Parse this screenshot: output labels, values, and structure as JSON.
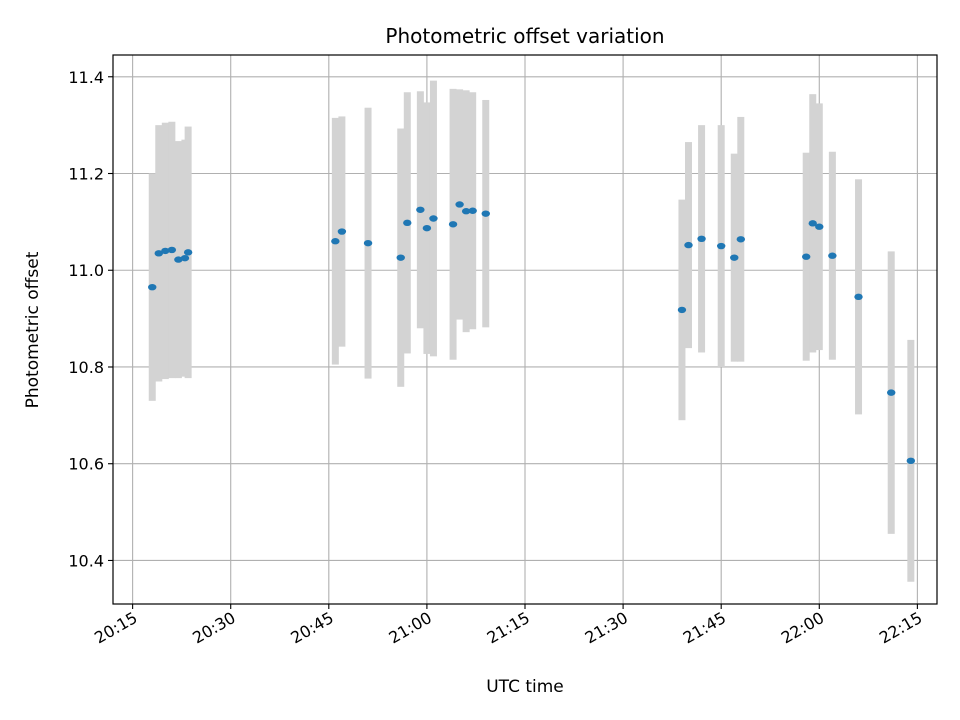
{
  "chart_data": {
    "type": "scatter",
    "title": "Photometric offset variation",
    "xlabel": "UTC time",
    "ylabel": "Photometric offset",
    "xlim": [
      "20:12",
      "22:18"
    ],
    "ylim": [
      10.31,
      11.445
    ],
    "grid": true,
    "x_ticks": [
      "20:15",
      "20:30",
      "20:45",
      "21:00",
      "21:15",
      "21:30",
      "21:45",
      "22:00",
      "22:15"
    ],
    "y_ticks": [
      "10.4",
      "10.6",
      "10.8",
      "11.0",
      "11.2",
      "11.4"
    ],
    "colors": {
      "points": "#1f77b4",
      "errorbars": "#d3d3d3",
      "grid": "#b0b0b0"
    },
    "series": [
      {
        "points": [
          {
            "x": "20:18",
            "y": 10.965,
            "err": 0.235
          },
          {
            "x": "20:19",
            "y": 11.035,
            "err": 0.265
          },
          {
            "x": "20:20",
            "y": 11.04,
            "err": 0.265
          },
          {
            "x": "20:21",
            "y": 11.042,
            "err": 0.265
          },
          {
            "x": "20:22",
            "y": 11.022,
            "err": 0.245
          },
          {
            "x": "20:23",
            "y": 11.025,
            "err": 0.245
          },
          {
            "x": "20:23",
            "y": 11.037,
            "err": 0.26
          },
          {
            "x": "20:46",
            "y": 11.06,
            "err": 0.255
          },
          {
            "x": "20:47",
            "y": 11.08,
            "err": 0.238
          },
          {
            "x": "20:51",
            "y": 11.056,
            "err": 0.28
          },
          {
            "x": "20:56",
            "y": 11.026,
            "err": 0.267
          },
          {
            "x": "20:57",
            "y": 11.098,
            "err": 0.27
          },
          {
            "x": "20:59",
            "y": 11.125,
            "err": 0.245
          },
          {
            "x": "21:00",
            "y": 11.087,
            "err": 0.26
          },
          {
            "x": "21:01",
            "y": 11.107,
            "err": 0.285
          },
          {
            "x": "21:04",
            "y": 11.095,
            "err": 0.28
          },
          {
            "x": "21:05",
            "y": 11.136,
            "err": 0.238
          },
          {
            "x": "21:06",
            "y": 11.122,
            "err": 0.25
          },
          {
            "x": "21:07",
            "y": 11.123,
            "err": 0.245
          },
          {
            "x": "21:09",
            "y": 11.117,
            "err": 0.235
          },
          {
            "x": "21:39",
            "y": 10.918,
            "err": 0.228
          },
          {
            "x": "21:40",
            "y": 11.052,
            "err": 0.213
          },
          {
            "x": "21:42",
            "y": 11.065,
            "err": 0.235
          },
          {
            "x": "21:45",
            "y": 11.05,
            "err": 0.25
          },
          {
            "x": "21:47",
            "y": 11.026,
            "err": 0.215
          },
          {
            "x": "21:48",
            "y": 11.064,
            "err": 0.253
          },
          {
            "x": "21:58",
            "y": 11.028,
            "err": 0.215
          },
          {
            "x": "21:59",
            "y": 11.097,
            "err": 0.267
          },
          {
            "x": "22:00",
            "y": 11.09,
            "err": 0.255
          },
          {
            "x": "22:02",
            "y": 11.03,
            "err": 0.215
          },
          {
            "x": "22:06",
            "y": 10.945,
            "err": 0.243
          },
          {
            "x": "22:11",
            "y": 10.747,
            "err": 0.292
          },
          {
            "x": "22:14",
            "y": 10.606,
            "err": 0.25
          }
        ]
      }
    ]
  }
}
